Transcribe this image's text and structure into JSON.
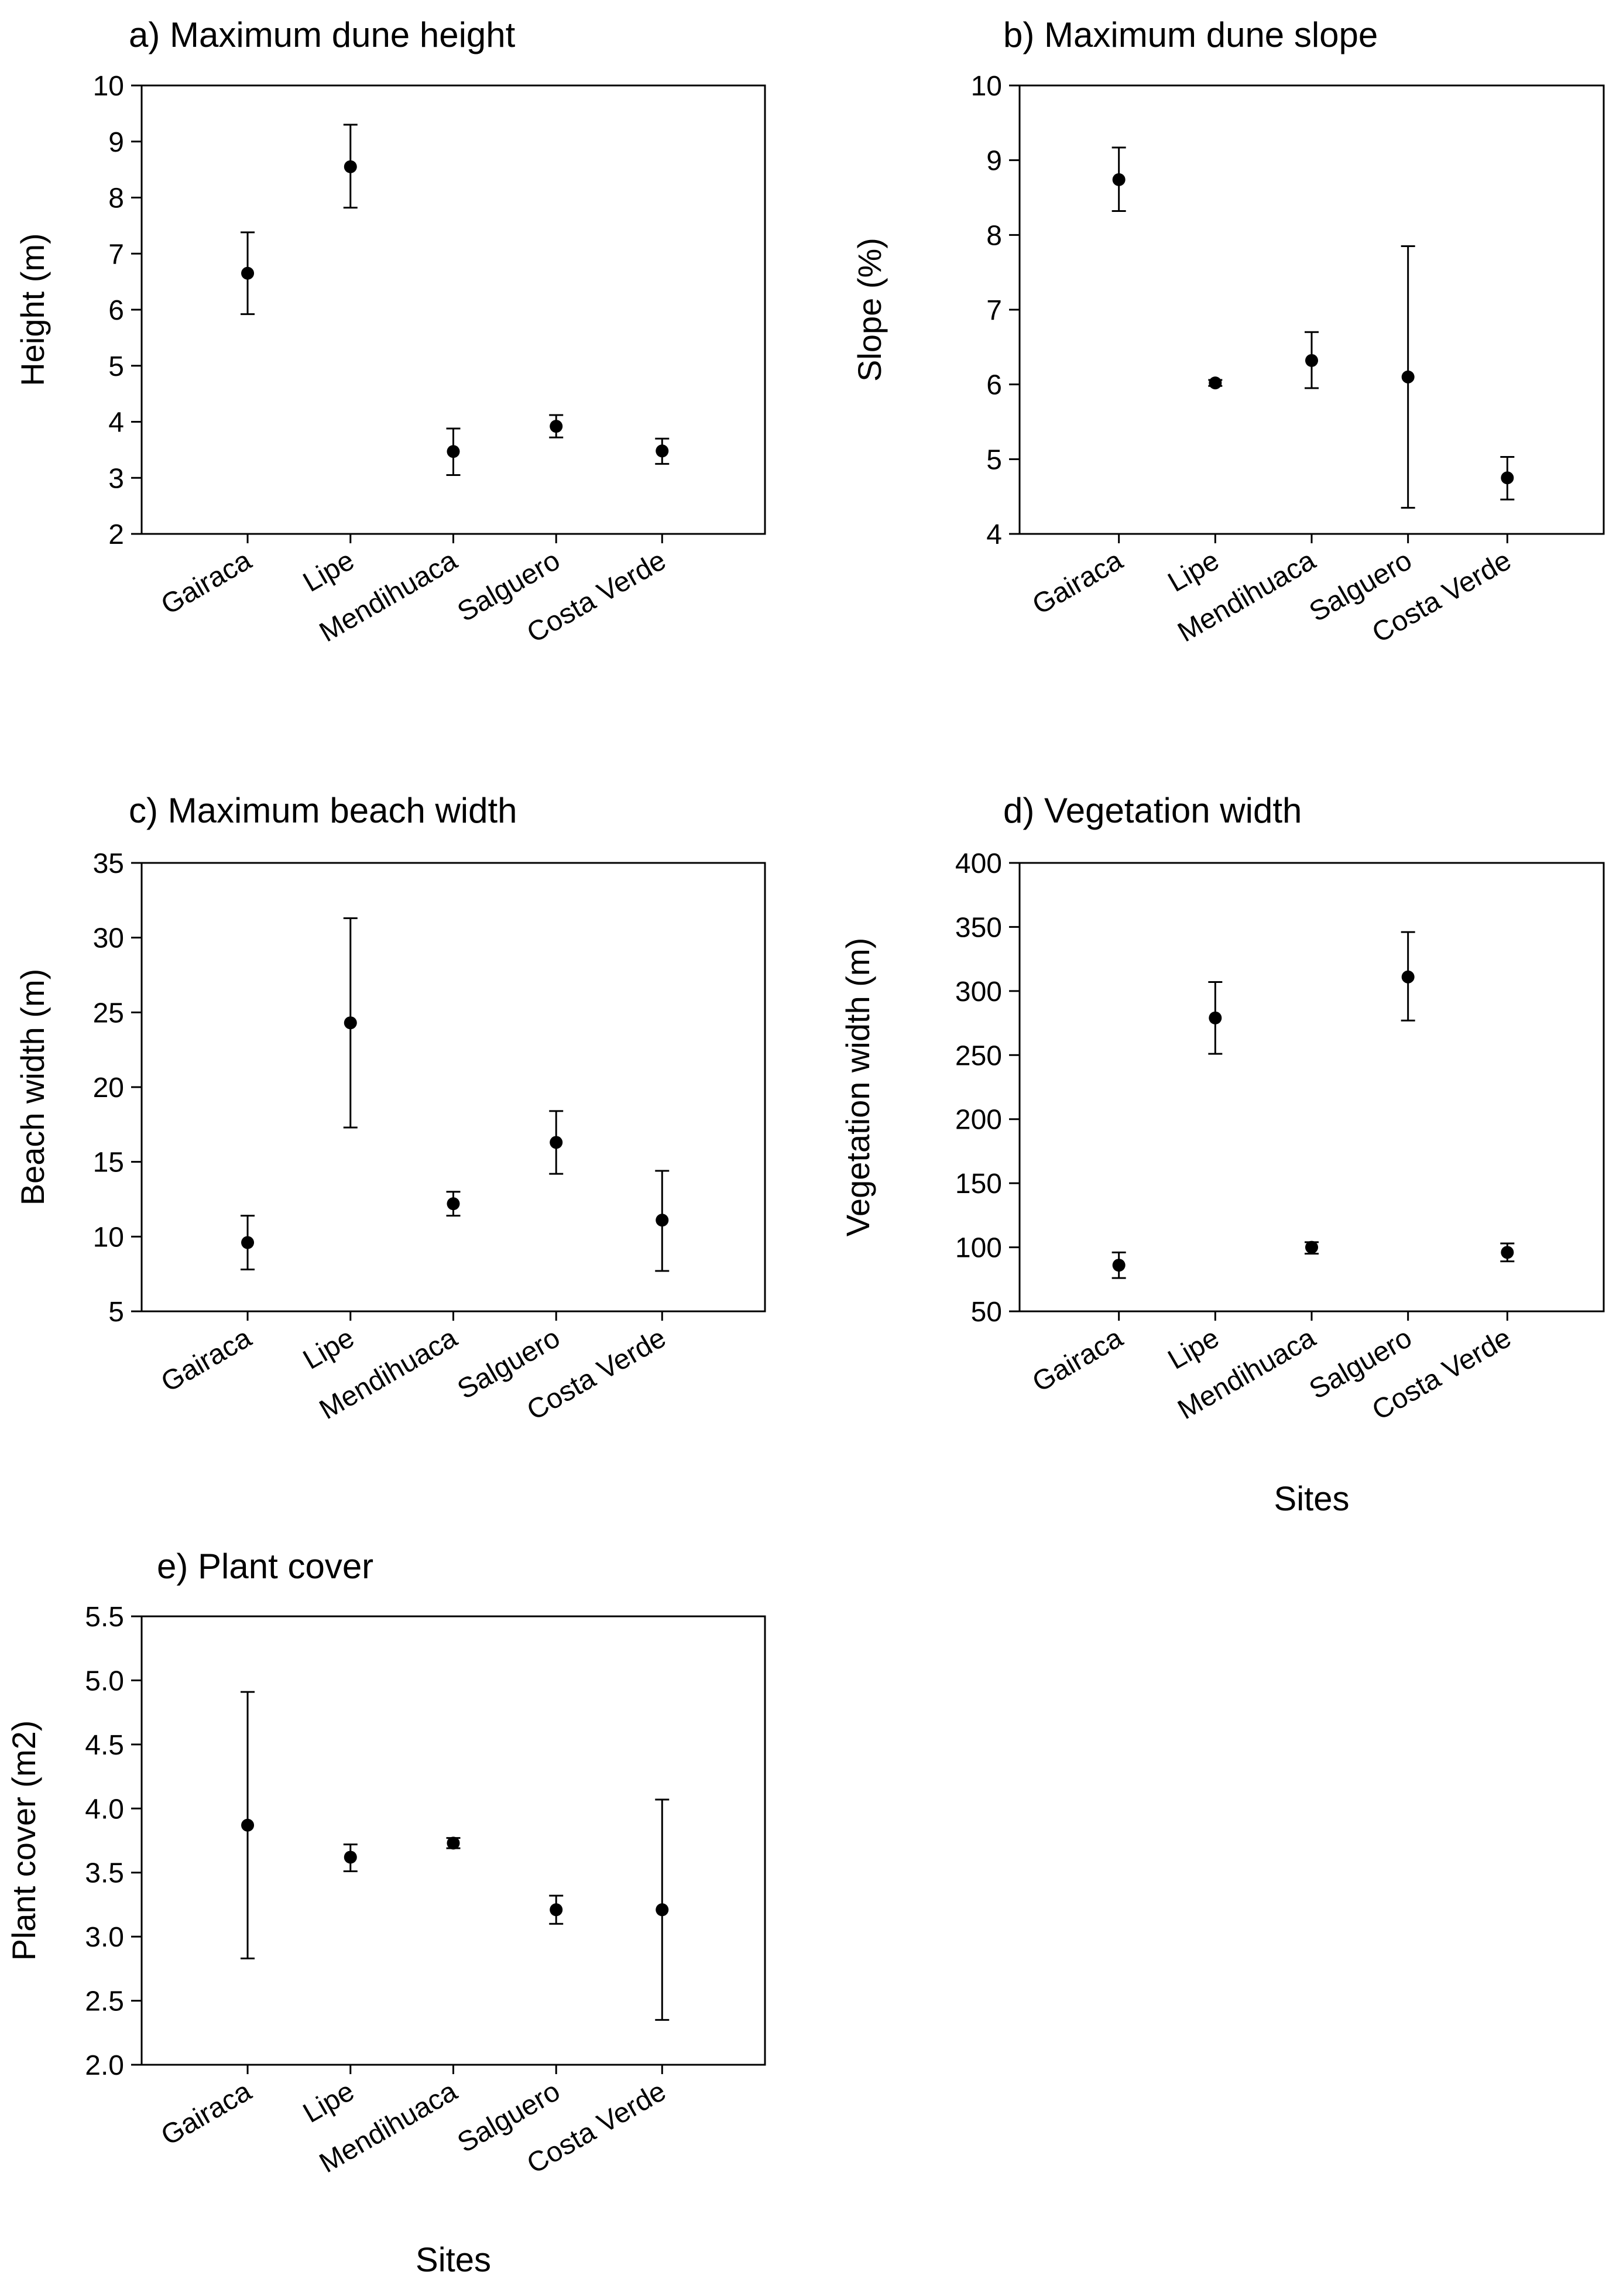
{
  "figure": {
    "x_axis_label": "Sites"
  },
  "chart_data": [
    {
      "id": "a",
      "type": "scatter",
      "title": "a) Maximum dune height",
      "xlabel": "",
      "ylabel": "Height (m)",
      "categories": [
        "Gairaca",
        "Lipe",
        "Mendihuaca",
        "Salguero",
        "Costa Verde"
      ],
      "ylim": [
        2,
        10
      ],
      "yticks": [
        2,
        3,
        4,
        5,
        6,
        7,
        8,
        9,
        10
      ],
      "ytick_labels": [
        "2",
        "3",
        "4",
        "5",
        "6",
        "7",
        "8",
        "9",
        "10"
      ],
      "means": [
        6.65,
        8.55,
        3.47,
        3.92,
        3.48
      ],
      "lower": [
        5.92,
        7.82,
        3.05,
        3.72,
        3.25
      ],
      "upper": [
        7.38,
        9.3,
        3.88,
        4.12,
        3.7
      ]
    },
    {
      "id": "b",
      "type": "scatter",
      "title": "b) Maximum dune slope",
      "xlabel": "",
      "ylabel": "Slope (%)",
      "categories": [
        "Gairaca",
        "Lipe",
        "Mendihuaca",
        "Salguero",
        "Costa Verde"
      ],
      "ylim": [
        4,
        10
      ],
      "yticks": [
        4,
        5,
        6,
        7,
        8,
        9,
        10
      ],
      "ytick_labels": [
        "4",
        "5",
        "6",
        "7",
        "8",
        "9",
        "10"
      ],
      "means": [
        8.74,
        6.02,
        6.32,
        6.1,
        4.75
      ],
      "lower": [
        8.32,
        5.98,
        5.95,
        4.35,
        4.46
      ],
      "upper": [
        9.17,
        6.06,
        6.7,
        7.85,
        5.03
      ]
    },
    {
      "id": "c",
      "type": "scatter",
      "title": "c) Maximum beach width",
      "xlabel": "",
      "ylabel": "Beach width (m)",
      "categories": [
        "Gairaca",
        "Lipe",
        "Mendihuaca",
        "Salguero",
        "Costa Verde"
      ],
      "ylim": [
        5,
        35
      ],
      "yticks": [
        5,
        10,
        15,
        20,
        25,
        30,
        35
      ],
      "ytick_labels": [
        "5",
        "10",
        "15",
        "20",
        "25",
        "30",
        "35"
      ],
      "means": [
        9.6,
        24.3,
        12.2,
        16.3,
        11.1
      ],
      "lower": [
        7.8,
        17.3,
        11.4,
        14.2,
        7.7
      ],
      "upper": [
        11.4,
        31.3,
        13.0,
        18.4,
        14.4
      ]
    },
    {
      "id": "d",
      "type": "scatter",
      "title": "d) Vegetation width",
      "xlabel": "Sites",
      "ylabel": "Vegetation width (m)",
      "categories": [
        "Gairaca",
        "Lipe",
        "Mendihuaca",
        "Salguero",
        "Costa Verde"
      ],
      "ylim": [
        50,
        400
      ],
      "yticks": [
        50,
        100,
        150,
        200,
        250,
        300,
        350,
        400
      ],
      "ytick_labels": [
        "50",
        "100",
        "150",
        "200",
        "250",
        "300",
        "350",
        "400"
      ],
      "means": [
        86,
        279,
        100,
        311,
        96
      ],
      "lower": [
        76,
        251,
        95,
        277,
        89
      ],
      "upper": [
        96,
        307,
        104,
        346,
        103
      ]
    },
    {
      "id": "e",
      "type": "scatter",
      "title": "e) Plant cover",
      "xlabel": "Sites",
      "ylabel": "Plant cover (m2)",
      "categories": [
        "Gairaca",
        "Lipe",
        "Mendihuaca",
        "Salguero",
        "Costa Verde"
      ],
      "ylim": [
        2.0,
        5.5
      ],
      "yticks": [
        2.0,
        2.5,
        3.0,
        3.5,
        4.0,
        4.5,
        5.0,
        5.5
      ],
      "ytick_labels": [
        "2.0",
        "2.5",
        "3.0",
        "3.5",
        "4.0",
        "4.5",
        "5.0",
        "5.5"
      ],
      "means": [
        3.87,
        3.62,
        3.73,
        3.21,
        3.21
      ],
      "lower": [
        2.83,
        3.51,
        3.69,
        3.1,
        2.35
      ],
      "upper": [
        4.91,
        3.72,
        3.77,
        3.32,
        4.07
      ]
    }
  ]
}
